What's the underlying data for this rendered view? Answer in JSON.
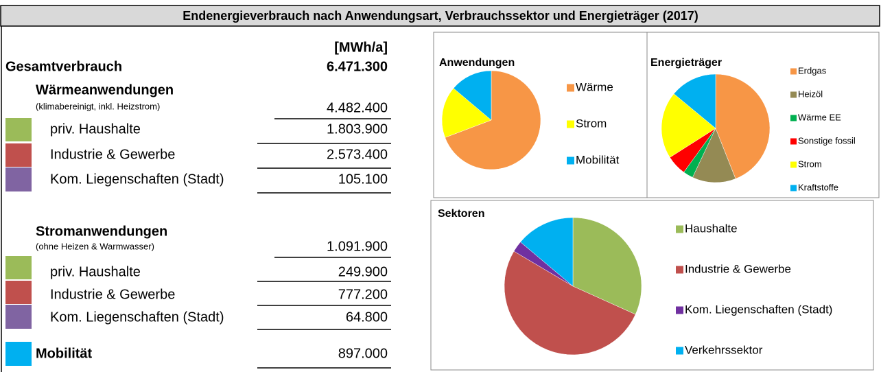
{
  "header": {
    "title": "Endenergieverbrauch nach Anwendungsart, Verbrauchssektor und Energieträger (2017)"
  },
  "table": {
    "unit": "[MWh/a]",
    "total": {
      "label": "Gesamtverbrauch",
      "value": "6.471.300"
    },
    "heat": {
      "title": "Wärmeanwendungen",
      "note": "(klimabereinigt, inkl. Heizstrom)",
      "value": "4.482.400",
      "rows": [
        {
          "label": "priv. Haushalte",
          "value": "1.803.900"
        },
        {
          "label": "Industrie & Gewerbe",
          "value": "2.573.400"
        },
        {
          "label": "Kom. Liegenschaften (Stadt)",
          "value": "105.100"
        }
      ]
    },
    "power": {
      "title": "Stromanwendungen",
      "note": "(ohne Heizen & Warmwasser)",
      "value": "1.091.900",
      "rows": [
        {
          "label": "priv. Haushalte",
          "value": "249.900"
        },
        {
          "label": "Industrie & Gewerbe",
          "value": "777.200"
        },
        {
          "label": "Kom. Liegenschaften (Stadt)",
          "value": "64.800"
        }
      ]
    },
    "mobility": {
      "title": "Mobilität",
      "value": "897.000"
    }
  },
  "chart_data": [
    {
      "type": "pie",
      "title": "Anwendungen",
      "categories": [
        "Wärme",
        "Strom",
        "Mobilität"
      ],
      "values": [
        4482400,
        1091900,
        897000
      ],
      "colors": [
        "#f79646",
        "#ffff00",
        "#00b0f0"
      ]
    },
    {
      "type": "pie",
      "title": "Energieträger",
      "categories": [
        "Erdgas",
        "Heizöl",
        "Wärme EE",
        "Sonstige fossil",
        "Strom",
        "Kraftstoffe"
      ],
      "values": [
        44,
        13,
        3,
        6,
        20,
        14
      ],
      "colors": [
        "#f79646",
        "#948a54",
        "#00b050",
        "#ff0000",
        "#ffff00",
        "#00b0f0"
      ]
    },
    {
      "type": "pie",
      "title": "Sektoren",
      "categories": [
        "Haushalte",
        "Industrie & Gewerbe",
        "Kom. Liegenschaften (Stadt)",
        "Verkehrssektor"
      ],
      "values": [
        2053800,
        3350600,
        169900,
        897000
      ],
      "colors": [
        "#9bbb59",
        "#c0504d",
        "#7030a0",
        "#00b0f0"
      ]
    }
  ]
}
